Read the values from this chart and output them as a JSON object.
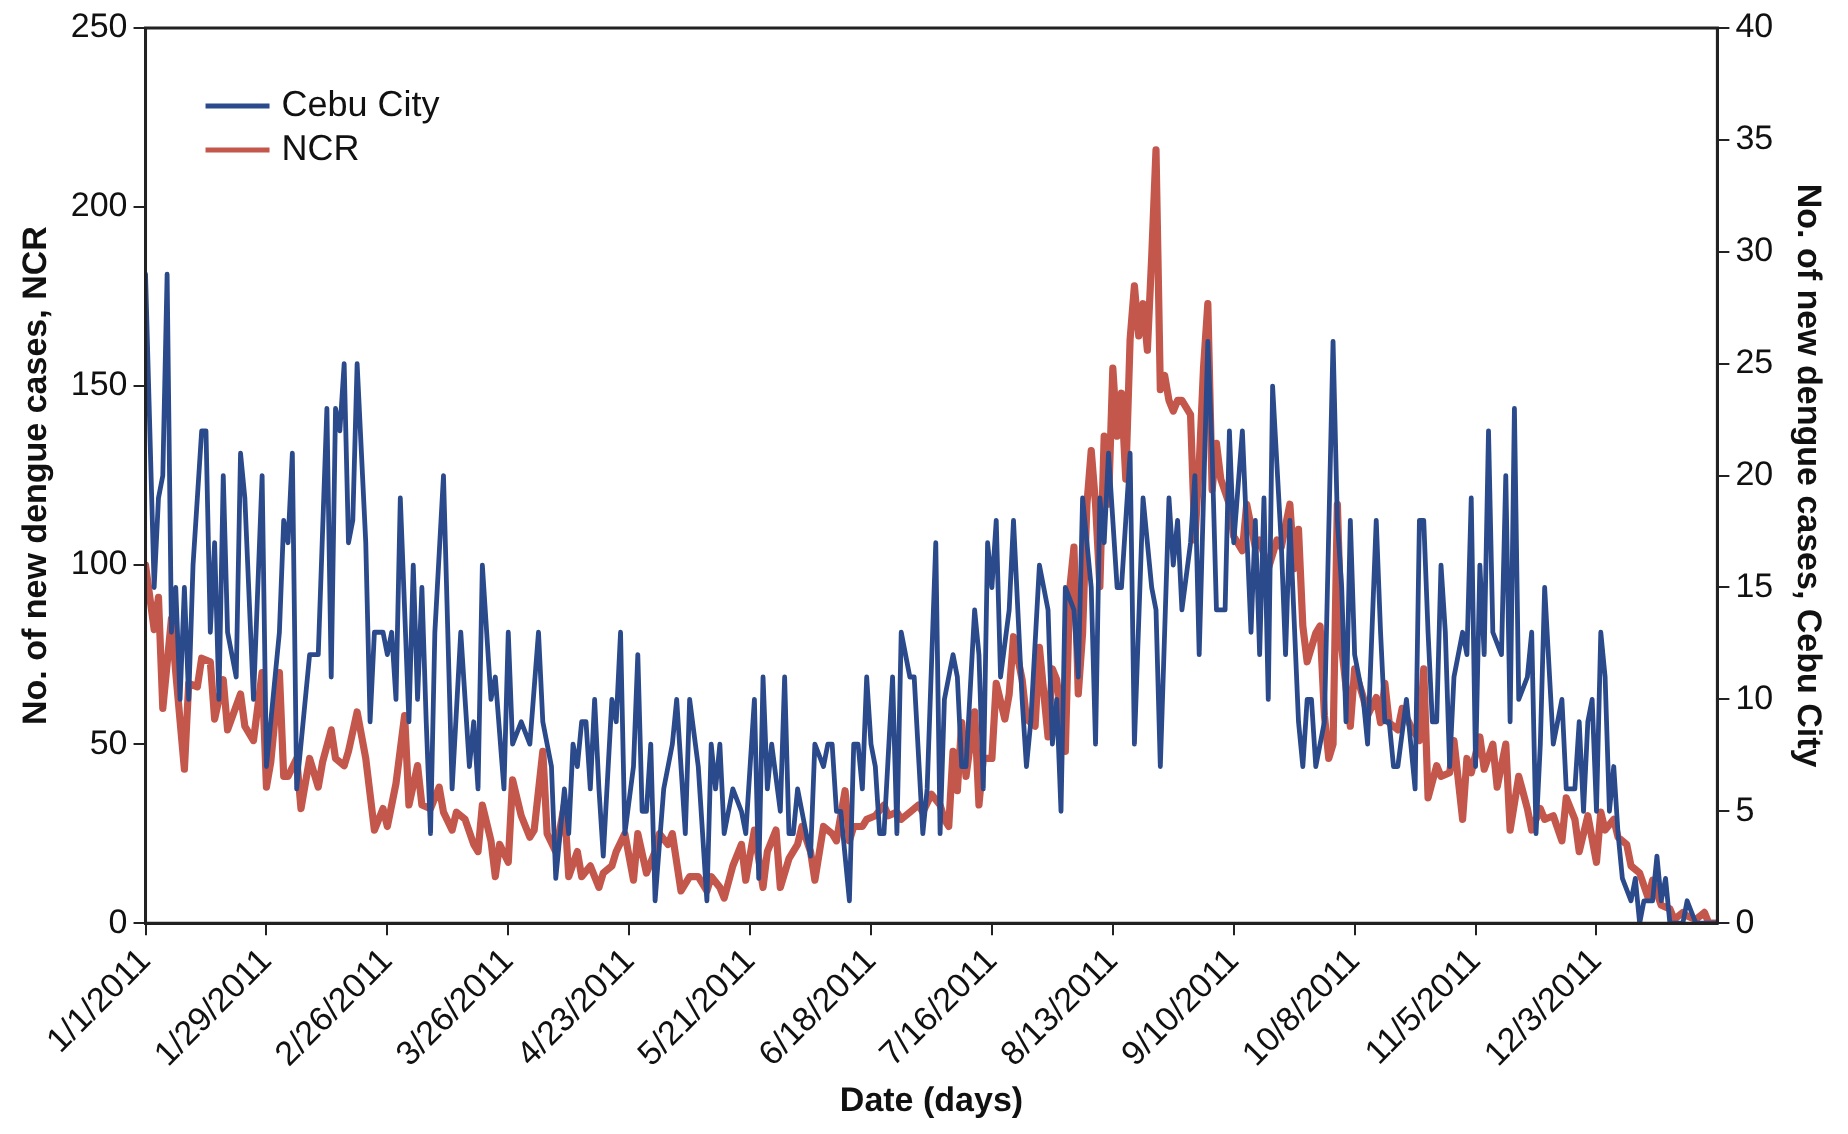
{
  "chart_data": {
    "type": "line",
    "xlabel": "Date (days)",
    "ylabel": "No. of new dengue cases, NCR",
    "y2label": "No. of new dengue cases, Cebu City",
    "xlim": [
      "2011-01-01",
      "2011-12-31"
    ],
    "xticks": [
      {
        "value": "2011-01-01",
        "label": "1/1/2011"
      },
      {
        "value": "2011-01-29",
        "label": "1/29/2011"
      },
      {
        "value": "2011-02-26",
        "label": "2/26/2011"
      },
      {
        "value": "2011-03-26",
        "label": "3/26/2011"
      },
      {
        "value": "2011-04-23",
        "label": "4/23/2011"
      },
      {
        "value": "2011-05-21",
        "label": "5/21/2011"
      },
      {
        "value": "2011-06-18",
        "label": "6/18/2011"
      },
      {
        "value": "2011-07-16",
        "label": "7/16/2011"
      },
      {
        "value": "2011-08-13",
        "label": "8/13/2011"
      },
      {
        "value": "2011-09-10",
        "label": "9/10/2011"
      },
      {
        "value": "2011-10-08",
        "label": "10/8/2011"
      },
      {
        "value": "2011-11-05",
        "label": "11/5/2011"
      },
      {
        "value": "2011-12-03",
        "label": "12/3/2011"
      }
    ],
    "ylim": [
      0,
      250
    ],
    "yticks": [
      0,
      50,
      100,
      150,
      200,
      250
    ],
    "y2lim": [
      0,
      40
    ],
    "y2ticks": [
      0,
      5,
      10,
      15,
      20,
      25,
      30,
      35,
      40
    ],
    "grid": false,
    "legend": "top left",
    "marker": "none",
    "line_style": "solid",
    "series": [
      {
        "name": "Cebu City",
        "color": "#2b4a8b",
        "axis": "y2",
        "x": [
          "2011-01-01",
          "2011-01-03",
          "2011-01-04",
          "2011-01-05",
          "2011-01-06",
          "2011-01-07",
          "2011-01-08",
          "2011-01-09",
          "2011-01-10",
          "2011-01-11",
          "2011-01-12",
          "2011-01-14",
          "2011-01-15",
          "2011-01-16",
          "2011-01-17",
          "2011-01-18",
          "2011-01-19",
          "2011-01-20",
          "2011-01-22",
          "2011-01-23",
          "2011-01-24",
          "2011-01-26",
          "2011-01-28",
          "2011-01-29",
          "2011-02-01",
          "2011-02-02",
          "2011-02-03",
          "2011-02-04",
          "2011-02-05",
          "2011-02-08",
          "2011-02-10",
          "2011-02-12",
          "2011-02-13",
          "2011-02-14",
          "2011-02-15",
          "2011-02-16",
          "2011-02-17",
          "2011-02-18",
          "2011-02-19",
          "2011-02-21",
          "2011-02-22",
          "2011-02-23",
          "2011-02-25",
          "2011-02-26",
          "2011-02-27",
          "2011-02-28",
          "2011-03-01",
          "2011-03-03",
          "2011-03-04",
          "2011-03-05",
          "2011-03-06",
          "2011-03-07",
          "2011-03-08",
          "2011-03-09",
          "2011-03-11",
          "2011-03-13",
          "2011-03-15",
          "2011-03-17",
          "2011-03-18",
          "2011-03-19",
          "2011-03-20",
          "2011-03-22",
          "2011-03-23",
          "2011-03-25",
          "2011-03-26",
          "2011-03-27",
          "2011-03-29",
          "2011-03-31",
          "2011-04-02",
          "2011-04-03",
          "2011-04-05",
          "2011-04-06",
          "2011-04-08",
          "2011-04-09",
          "2011-04-10",
          "2011-04-11",
          "2011-04-12",
          "2011-04-13",
          "2011-04-14",
          "2011-04-15",
          "2011-04-16",
          "2011-04-17",
          "2011-04-19",
          "2011-04-20",
          "2011-04-21",
          "2011-04-22",
          "2011-04-24",
          "2011-04-25",
          "2011-04-26",
          "2011-04-27",
          "2011-04-28",
          "2011-04-29",
          "2011-05-01",
          "2011-05-03",
          "2011-05-04",
          "2011-05-06",
          "2011-05-07",
          "2011-05-09",
          "2011-05-11",
          "2011-05-12",
          "2011-05-13",
          "2011-05-14",
          "2011-05-15",
          "2011-05-17",
          "2011-05-19",
          "2011-05-20",
          "2011-05-22",
          "2011-05-23",
          "2011-05-24",
          "2011-05-25",
          "2011-05-26",
          "2011-05-28",
          "2011-05-29",
          "2011-05-30",
          "2011-05-31",
          "2011-06-01",
          "2011-06-03",
          "2011-06-04",
          "2011-06-05",
          "2011-06-07",
          "2011-06-08",
          "2011-06-09",
          "2011-06-10",
          "2011-06-11",
          "2011-06-13",
          "2011-06-14",
          "2011-06-15",
          "2011-06-16",
          "2011-06-17",
          "2011-06-18",
          "2011-06-19",
          "2011-06-20",
          "2011-06-21",
          "2011-06-23",
          "2011-06-24",
          "2011-06-25",
          "2011-06-27",
          "2011-06-28",
          "2011-06-30",
          "2011-07-01",
          "2011-07-03",
          "2011-07-04",
          "2011-07-05",
          "2011-07-07",
          "2011-07-08",
          "2011-07-09",
          "2011-07-10",
          "2011-07-12",
          "2011-07-13",
          "2011-07-14",
          "2011-07-15",
          "2011-07-16",
          "2011-07-17",
          "2011-07-18",
          "2011-07-20",
          "2011-07-21",
          "2011-07-23",
          "2011-07-24",
          "2011-07-25",
          "2011-07-27",
          "2011-07-29",
          "2011-07-30",
          "2011-07-31",
          "2011-08-01",
          "2011-08-02",
          "2011-08-04",
          "2011-08-05",
          "2011-08-06",
          "2011-08-08",
          "2011-08-09",
          "2011-08-10",
          "2011-08-11",
          "2011-08-12",
          "2011-08-14",
          "2011-08-15",
          "2011-08-17",
          "2011-08-18",
          "2011-08-20",
          "2011-08-22",
          "2011-08-23",
          "2011-08-24",
          "2011-08-26",
          "2011-08-27",
          "2011-08-28",
          "2011-08-29",
          "2011-08-31",
          "2011-09-01",
          "2011-09-02",
          "2011-09-04",
          "2011-09-05",
          "2011-09-06",
          "2011-09-08",
          "2011-09-09",
          "2011-09-10",
          "2011-09-12",
          "2011-09-14",
          "2011-09-15",
          "2011-09-16",
          "2011-09-17",
          "2011-09-18",
          "2011-09-19",
          "2011-09-21",
          "2011-09-22",
          "2011-09-23",
          "2011-09-25",
          "2011-09-26",
          "2011-09-27",
          "2011-09-28",
          "2011-09-29",
          "2011-10-01",
          "2011-10-03",
          "2011-10-04",
          "2011-10-05",
          "2011-10-06",
          "2011-10-07",
          "2011-10-08",
          "2011-10-10",
          "2011-10-11",
          "2011-10-13",
          "2011-10-14",
          "2011-10-15",
          "2011-10-16",
          "2011-10-17",
          "2011-10-18",
          "2011-10-20",
          "2011-10-21",
          "2011-10-22",
          "2011-10-23",
          "2011-10-24",
          "2011-10-25",
          "2011-10-26",
          "2011-10-27",
          "2011-10-28",
          "2011-10-29",
          "2011-10-30",
          "2011-10-31",
          "2011-11-02",
          "2011-11-03",
          "2011-11-04",
          "2011-11-05",
          "2011-11-06",
          "2011-11-07",
          "2011-11-08",
          "2011-11-09",
          "2011-11-11",
          "2011-11-12",
          "2011-11-13",
          "2011-11-14",
          "2011-11-15",
          "2011-11-17",
          "2011-11-18",
          "2011-11-19",
          "2011-11-20",
          "2011-11-21",
          "2011-11-23",
          "2011-11-24",
          "2011-11-25",
          "2011-11-26",
          "2011-11-28",
          "2011-11-29",
          "2011-11-30",
          "2011-12-01",
          "2011-12-02",
          "2011-12-03",
          "2011-12-04",
          "2011-12-05",
          "2011-12-06",
          "2011-12-07",
          "2011-12-08",
          "2011-12-09",
          "2011-12-11",
          "2011-12-12",
          "2011-12-13",
          "2011-12-14",
          "2011-12-16",
          "2011-12-17",
          "2011-12-18",
          "2011-12-19",
          "2011-12-20",
          "2011-12-23",
          "2011-12-24",
          "2011-12-26",
          "2011-12-31"
        ],
        "values": [
          29,
          15,
          19,
          20,
          29,
          13,
          15,
          10,
          15,
          10,
          16,
          22,
          22,
          13,
          17,
          10,
          20,
          13,
          11,
          21,
          19,
          10,
          20,
          7,
          13,
          18,
          17,
          21,
          6,
          12,
          12,
          23,
          11,
          23,
          22,
          25,
          17,
          18,
          25,
          17,
          9,
          13,
          13,
          12,
          13,
          10,
          19,
          9,
          16,
          10,
          15,
          9,
          4,
          13,
          20,
          6,
          13,
          7,
          9,
          6,
          16,
          10,
          11,
          6,
          13,
          8,
          9,
          8,
          13,
          9,
          7,
          2,
          6,
          4,
          8,
          7,
          9,
          9,
          6,
          10,
          6,
          3,
          10,
          9,
          13,
          4,
          7,
          12,
          5,
          5,
          8,
          1,
          6,
          8,
          10,
          4,
          10,
          7,
          1,
          8,
          6,
          8,
          4,
          6,
          5,
          4,
          10,
          2,
          11,
          6,
          8,
          5,
          11,
          4,
          4,
          6,
          4,
          3,
          8,
          7,
          8,
          8,
          5,
          5,
          1,
          8,
          8,
          6,
          11,
          8,
          7,
          4,
          4,
          11,
          4,
          13,
          11,
          11,
          4,
          6,
          17,
          4,
          10,
          12,
          11,
          7,
          7,
          14,
          12,
          6,
          17,
          15,
          18,
          11,
          14,
          18,
          10,
          7,
          9,
          16,
          14,
          8,
          10,
          5,
          15,
          14,
          11,
          19,
          15,
          8,
          19,
          17,
          21,
          15,
          15,
          21,
          8,
          19,
          15,
          14,
          7,
          19,
          16,
          18,
          14,
          17,
          20,
          12,
          26,
          21,
          14,
          14,
          22,
          17,
          22,
          13,
          18,
          12,
          19,
          10,
          24,
          17,
          12,
          18,
          9,
          7,
          10,
          10,
          7,
          9,
          26,
          18,
          15,
          9,
          18,
          12,
          10,
          8,
          18,
          13,
          9,
          9,
          7,
          7,
          10,
          8,
          6,
          18,
          18,
          13,
          9,
          9,
          16,
          13,
          7,
          11,
          13,
          12,
          19,
          7,
          16,
          12,
          22,
          13,
          12,
          20,
          9,
          23,
          10,
          11,
          13,
          4,
          8,
          15,
          8,
          9,
          10,
          6,
          6,
          9,
          5,
          9,
          10,
          5,
          13,
          11,
          5,
          7,
          4,
          2,
          1,
          2,
          0,
          1,
          1,
          3,
          1,
          2,
          0,
          0,
          1,
          0,
          0
        ]
      },
      {
        "name": "NCR",
        "color": "#c4574c",
        "x": [
          "2011-01-01",
          "2011-01-03",
          "2011-01-04",
          "2011-01-05",
          "2011-01-07",
          "2011-01-08",
          "2011-01-10",
          "2011-01-11",
          "2011-01-13",
          "2011-01-14",
          "2011-01-16",
          "2011-01-17",
          "2011-01-19",
          "2011-01-20",
          "2011-01-23",
          "2011-01-24",
          "2011-01-26",
          "2011-01-28",
          "2011-01-29",
          "2011-01-30",
          "2011-02-01",
          "2011-02-02",
          "2011-02-03",
          "2011-02-05",
          "2011-02-06",
          "2011-02-08",
          "2011-02-10",
          "2011-02-11",
          "2011-02-13",
          "2011-02-14",
          "2011-02-16",
          "2011-02-17",
          "2011-02-19",
          "2011-02-21",
          "2011-02-23",
          "2011-02-25",
          "2011-02-26",
          "2011-02-28",
          "2011-03-02",
          "2011-03-03",
          "2011-03-05",
          "2011-03-06",
          "2011-03-08",
          "2011-03-10",
          "2011-03-11",
          "2011-03-13",
          "2011-03-14",
          "2011-03-16",
          "2011-03-18",
          "2011-03-19",
          "2011-03-20",
          "2011-03-22",
          "2011-03-23",
          "2011-03-24",
          "2011-03-26",
          "2011-03-27",
          "2011-03-29",
          "2011-03-31",
          "2011-04-01",
          "2011-04-03",
          "2011-04-04",
          "2011-04-06",
          "2011-04-08",
          "2011-04-09",
          "2011-04-11",
          "2011-04-12",
          "2011-04-14",
          "2011-04-16",
          "2011-04-17",
          "2011-04-19",
          "2011-04-20",
          "2011-04-22",
          "2011-04-24",
          "2011-04-25",
          "2011-04-27",
          "2011-04-29",
          "2011-04-30",
          "2011-05-02",
          "2011-05-03",
          "2011-05-05",
          "2011-05-07",
          "2011-05-09",
          "2011-05-11",
          "2011-05-12",
          "2011-05-14",
          "2011-05-15",
          "2011-05-17",
          "2011-05-19",
          "2011-05-20",
          "2011-05-22",
          "2011-05-24",
          "2011-05-25",
          "2011-05-27",
          "2011-05-28",
          "2011-05-30",
          "2011-06-01",
          "2011-06-02",
          "2011-06-04",
          "2011-06-05",
          "2011-06-07",
          "2011-06-09",
          "2011-06-10",
          "2011-06-12",
          "2011-06-13",
          "2011-06-14",
          "2011-06-16",
          "2011-06-17",
          "2011-06-19",
          "2011-06-21",
          "2011-06-22",
          "2011-06-24",
          "2011-06-25",
          "2011-06-27",
          "2011-06-29",
          "2011-06-30",
          "2011-07-02",
          "2011-07-04",
          "2011-07-05",
          "2011-07-06",
          "2011-07-07",
          "2011-07-08",
          "2011-07-09",
          "2011-07-10",
          "2011-07-12",
          "2011-07-13",
          "2011-07-14",
          "2011-07-16",
          "2011-07-17",
          "2011-07-19",
          "2011-07-20",
          "2011-07-21",
          "2011-07-23",
          "2011-07-24",
          "2011-07-26",
          "2011-07-27",
          "2011-07-29",
          "2011-07-30",
          "2011-07-31",
          "2011-08-02",
          "2011-08-03",
          "2011-08-04",
          "2011-08-05",
          "2011-08-06",
          "2011-08-07",
          "2011-08-08",
          "2011-08-09",
          "2011-08-10",
          "2011-08-11",
          "2011-08-12",
          "2011-08-13",
          "2011-08-14",
          "2011-08-15",
          "2011-08-16",
          "2011-08-17",
          "2011-08-18",
          "2011-08-19",
          "2011-08-20",
          "2011-08-21",
          "2011-08-22",
          "2011-08-23",
          "2011-08-24",
          "2011-08-25",
          "2011-08-26",
          "2011-08-27",
          "2011-08-28",
          "2011-08-29",
          "2011-08-31",
          "2011-09-01",
          "2011-09-02",
          "2011-09-03",
          "2011-09-04",
          "2011-09-05",
          "2011-09-06",
          "2011-09-07",
          "2011-09-09",
          "2011-09-10",
          "2011-09-12",
          "2011-09-13",
          "2011-09-15",
          "2011-09-16",
          "2011-09-18",
          "2011-09-20",
          "2011-09-21",
          "2011-09-23",
          "2011-09-24",
          "2011-09-25",
          "2011-09-26",
          "2011-09-27",
          "2011-09-29",
          "2011-09-30",
          "2011-10-01",
          "2011-10-02",
          "2011-10-03",
          "2011-10-04",
          "2011-10-05",
          "2011-10-06",
          "2011-10-07",
          "2011-10-08",
          "2011-10-10",
          "2011-10-11",
          "2011-10-13",
          "2011-10-14",
          "2011-10-15",
          "2011-10-16",
          "2011-10-18",
          "2011-10-19",
          "2011-10-21",
          "2011-10-23",
          "2011-10-24",
          "2011-10-25",
          "2011-10-27",
          "2011-10-28",
          "2011-10-30",
          "2011-10-31",
          "2011-11-02",
          "2011-11-03",
          "2011-11-04",
          "2011-11-06",
          "2011-11-07",
          "2011-11-09",
          "2011-11-10",
          "2011-11-12",
          "2011-11-13",
          "2011-11-15",
          "2011-11-17",
          "2011-11-18",
          "2011-11-20",
          "2011-11-21",
          "2011-11-23",
          "2011-11-25",
          "2011-11-26",
          "2011-11-28",
          "2011-11-29",
          "2011-12-01",
          "2011-12-03",
          "2011-12-04",
          "2011-12-05",
          "2011-12-07",
          "2011-12-08",
          "2011-12-10",
          "2011-12-11",
          "2011-12-13",
          "2011-12-15",
          "2011-12-16",
          "2011-12-18",
          "2011-12-20",
          "2011-12-21",
          "2011-12-23",
          "2011-12-24",
          "2011-12-26",
          "2011-12-28",
          "2011-12-29",
          "2011-12-31"
        ],
        "values": [
          100,
          82,
          91,
          60,
          85,
          70,
          43,
          67,
          66,
          74,
          73,
          57,
          68,
          54,
          64,
          55,
          51,
          70,
          38,
          45,
          70,
          41,
          41,
          46,
          32,
          46,
          38,
          45,
          54,
          46,
          44,
          48,
          59,
          46,
          26,
          32,
          27,
          39,
          58,
          33,
          44,
          33,
          32,
          38,
          31,
          26,
          31,
          29,
          22,
          20,
          33,
          23,
          13,
          22,
          17,
          40,
          30,
          24,
          26,
          48,
          25,
          20,
          33,
          13,
          20,
          13,
          16,
          10,
          14,
          16,
          20,
          25,
          12,
          25,
          14,
          20,
          25,
          22,
          25,
          9,
          13,
          13,
          9,
          13,
          10,
          7,
          16,
          22,
          12,
          26,
          10,
          20,
          26,
          10,
          18,
          22,
          27,
          20,
          12,
          27,
          25,
          23,
          37,
          23,
          27,
          27,
          29,
          30,
          33,
          30,
          31,
          29,
          31,
          33,
          31,
          36,
          33,
          29,
          27,
          48,
          37,
          56,
          41,
          59,
          33,
          46,
          46,
          67,
          57,
          64,
          80,
          68,
          57,
          55,
          77,
          52,
          71,
          68,
          48,
          93,
          105,
          64,
          81,
          117,
          132,
          117,
          94,
          136,
          117,
          155,
          136,
          148,
          124,
          163,
          178,
          164,
          173,
          160,
          186,
          216,
          149,
          153,
          146,
          143,
          146,
          146,
          142,
          107,
          128,
          155,
          173,
          121,
          134,
          124,
          117,
          108,
          104,
          117,
          105,
          107,
          99,
          107,
          105,
          117,
          99,
          110,
          83,
          73,
          81,
          83,
          58,
          46,
          50,
          117,
          77,
          66,
          55,
          71,
          63,
          58,
          63,
          56,
          67,
          56,
          54,
          60,
          55,
          51,
          71,
          35,
          44,
          41,
          42,
          51,
          29,
          46,
          42,
          52,
          43,
          50,
          38,
          50,
          26,
          41,
          32,
          26,
          32,
          29,
          30,
          23,
          35,
          29,
          20,
          30,
          17,
          31,
          26,
          29,
          24,
          22,
          16,
          14,
          7,
          12,
          5,
          4,
          1,
          3,
          2,
          1,
          3,
          0,
          0
        ]
      }
    ]
  }
}
